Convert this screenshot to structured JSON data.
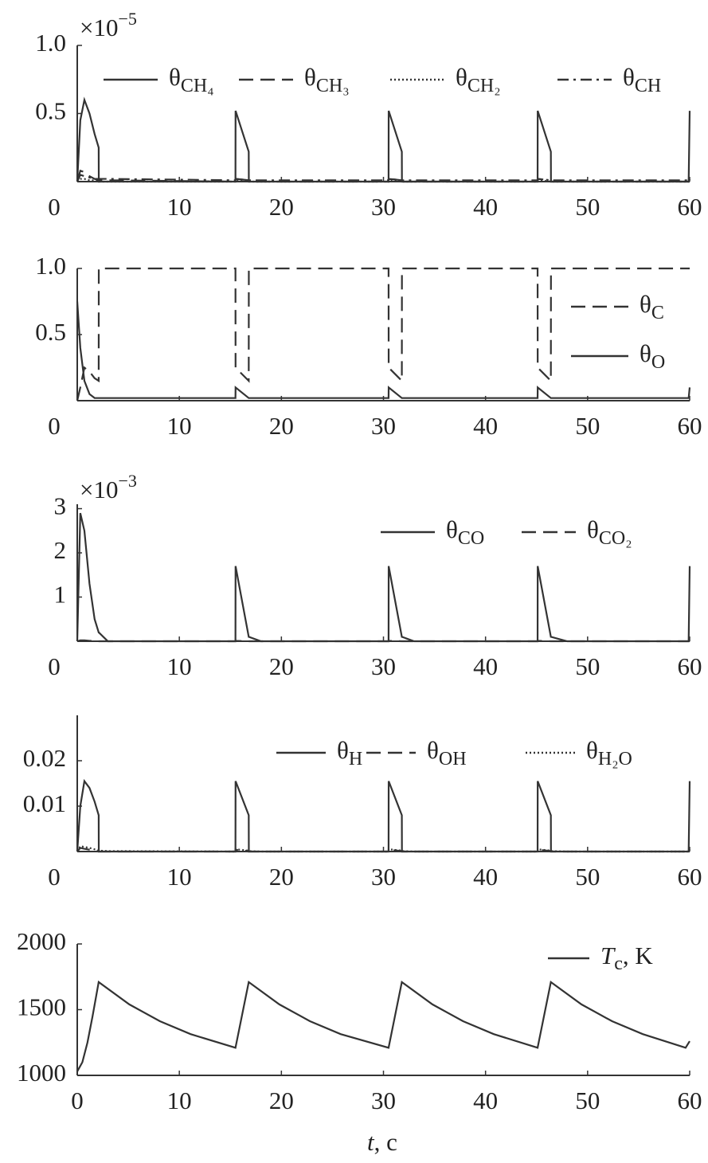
{
  "chart_data": [
    {
      "type": "line",
      "multiplier": "×10−5",
      "x": [
        0,
        0.3,
        0.7,
        1.2,
        1.7,
        2.1,
        2.11,
        3,
        15.5,
        15.51,
        16.8,
        16.81,
        18,
        30.5,
        30.51,
        31.8,
        31.81,
        33,
        45.1,
        45.11,
        46.4,
        46.41,
        48,
        59.9,
        60
      ],
      "series": [
        {
          "name": "θCH₄",
          "color": "#333333",
          "linestyle": "solid",
          "values": [
            0,
            0.45,
            0.6,
            0.5,
            0.35,
            0.25,
            0,
            0,
            0,
            0.52,
            0.22,
            0,
            0,
            0,
            0.52,
            0.22,
            0,
            0,
            0,
            0.52,
            0.22,
            0,
            0,
            0,
            0.52
          ]
        },
        {
          "name": "θCH₃",
          "color": "#333333",
          "linestyle": "dashed",
          "values": [
            0,
            0.08,
            0.07,
            0.04,
            0.02,
            0.01,
            0.01,
            0.01,
            0,
            0.02,
            0.01,
            0,
            0,
            0,
            0.02,
            0.01,
            0,
            0,
            0,
            0.02,
            0.01,
            0,
            0,
            0,
            0.02
          ]
        },
        {
          "name": "θCH₂",
          "color": "#333333",
          "linestyle": "dotted",
          "values": [
            0,
            0.02,
            0.02,
            0.01,
            0.01,
            0.01,
            0,
            0,
            0,
            0.01,
            0,
            0,
            0,
            0,
            0.01,
            0,
            0,
            0,
            0,
            0.01,
            0,
            0,
            0,
            0,
            0.01
          ]
        },
        {
          "name": "θCH",
          "color": "#333333",
          "linestyle": "dashdot",
          "values": [
            0,
            0.05,
            0.04,
            0.03,
            0.02,
            0.02,
            0.02,
            0.02,
            0.01,
            0.02,
            0.01,
            0.01,
            0.01,
            0.01,
            0.02,
            0.01,
            0.01,
            0.01,
            0.01,
            0.02,
            0.01,
            0.01,
            0.01,
            0.01,
            0.02
          ]
        }
      ],
      "xlim": [
        0,
        60
      ],
      "xticks": [
        0,
        10,
        20,
        30,
        40,
        50,
        60
      ],
      "ylim": [
        0,
        1
      ],
      "yticks": [
        0.5,
        {
          "value": 1,
          "label": "1.0"
        }
      ]
    },
    {
      "type": "line",
      "x": [
        0,
        0.3,
        0.7,
        1.2,
        1.7,
        2.1,
        2.11,
        3,
        15.5,
        15.51,
        16.8,
        16.81,
        18,
        30.5,
        30.51,
        31.8,
        31.81,
        33,
        45.1,
        45.11,
        46.4,
        46.41,
        48,
        59.9,
        60
      ],
      "series": [
        {
          "name": "θC",
          "color": "#333333",
          "linestyle": "dashed",
          "values": [
            0,
            0.1,
            0.25,
            0.22,
            0.17,
            0.15,
            1,
            1,
            1,
            0.25,
            0.15,
            1,
            1,
            1,
            0.25,
            0.15,
            1,
            1,
            1,
            0.25,
            0.15,
            1,
            1,
            1,
            1
          ]
        },
        {
          "name": "θO",
          "color": "#333333",
          "linestyle": "solid",
          "values": [
            0.75,
            0.4,
            0.15,
            0.05,
            0.02,
            0.02,
            0.02,
            0.02,
            0.02,
            0.1,
            0.02,
            0.02,
            0.02,
            0.02,
            0.1,
            0.02,
            0.02,
            0.02,
            0.02,
            0.1,
            0.02,
            0.02,
            0.02,
            0.02,
            0.1
          ]
        }
      ],
      "xlim": [
        0,
        60
      ],
      "xticks": [
        0,
        10,
        20,
        30,
        40,
        50,
        60
      ],
      "ylim": [
        0,
        1
      ],
      "yticks": [
        0.5,
        {
          "value": 1,
          "label": "1.0"
        }
      ]
    },
    {
      "type": "line",
      "multiplier": "×10−3",
      "x": [
        0,
        0.3,
        0.7,
        1.2,
        1.7,
        2.1,
        2.11,
        3,
        15.5,
        15.51,
        16.8,
        16.81,
        18,
        30.5,
        30.51,
        31.8,
        31.81,
        33,
        45.1,
        45.11,
        46.4,
        46.41,
        48,
        59.9,
        60
      ],
      "series": [
        {
          "name": "θCO",
          "color": "#333333",
          "linestyle": "solid",
          "values": [
            0,
            2.9,
            2.5,
            1.3,
            0.5,
            0.2,
            0.2,
            0,
            0,
            1.7,
            0.1,
            0.1,
            0,
            0,
            1.7,
            0.1,
            0.1,
            0,
            0,
            1.7,
            0.1,
            0.1,
            0,
            0,
            1.7
          ]
        },
        {
          "name": "θCO₂",
          "color": "#333333",
          "linestyle": "dashed",
          "values": [
            0,
            0.02,
            0.02,
            0.01,
            0.01,
            0,
            0,
            0,
            0,
            0.01,
            0,
            0,
            0,
            0,
            0.01,
            0,
            0,
            0,
            0,
            0.01,
            0,
            0,
            0,
            0,
            0.01
          ]
        }
      ],
      "xlim": [
        0,
        60
      ],
      "xticks": [
        0,
        10,
        20,
        30,
        40,
        50,
        60
      ],
      "ylim": [
        0,
        3.1
      ],
      "yticks": [
        1,
        2,
        3
      ]
    },
    {
      "type": "line",
      "x": [
        0,
        0.3,
        0.7,
        1.2,
        1.7,
        2.1,
        2.11,
        3,
        15.5,
        15.51,
        16.8,
        16.81,
        18,
        30.5,
        30.51,
        31.8,
        31.81,
        33,
        45.1,
        45.11,
        46.4,
        46.41,
        48,
        59.9,
        60
      ],
      "series": [
        {
          "name": "θH",
          "color": "#333333",
          "linestyle": "solid",
          "values": [
            0,
            0.01,
            0.0155,
            0.014,
            0.011,
            0.008,
            0,
            0,
            0,
            0.0155,
            0.008,
            0,
            0,
            0,
            0.0155,
            0.008,
            0,
            0,
            0,
            0.0155,
            0.008,
            0,
            0,
            0,
            0.0155
          ]
        },
        {
          "name": "θOH",
          "color": "#333333",
          "linestyle": "dashed",
          "values": [
            0,
            0.0008,
            0.0006,
            0.0004,
            0.0002,
            0.0001,
            0,
            0,
            0,
            0.0004,
            0.0001,
            0,
            0,
            0,
            0.0004,
            0.0001,
            0,
            0,
            0,
            0.0004,
            0.0001,
            0,
            0,
            0,
            0.0004
          ]
        },
        {
          "name": "θH₂O",
          "color": "#333333",
          "linestyle": "dotted",
          "values": [
            0,
            0.0012,
            0.001,
            0.0008,
            0.0005,
            0.0003,
            0.0002,
            0.0001,
            0,
            0.0005,
            0.0002,
            0.0001,
            0,
            0,
            0.0005,
            0.0002,
            0.0001,
            0,
            0,
            0.0005,
            0.0002,
            0.0001,
            0,
            0,
            0.0005
          ]
        }
      ],
      "xlim": [
        0,
        60
      ],
      "xticks": [
        0,
        10,
        20,
        30,
        40,
        50,
        60
      ],
      "ylim": [
        0,
        0.03
      ],
      "yticks": [
        0.01,
        0.02
      ]
    },
    {
      "type": "line",
      "x_label": "t, c",
      "x": [
        0,
        0.5,
        1,
        1.5,
        2.1,
        5.1,
        8.1,
        11.1,
        15.5,
        16.8,
        19.8,
        22.8,
        25.8,
        30.5,
        31.8,
        34.8,
        37.8,
        40.8,
        45.1,
        46.4,
        49.4,
        52.4,
        55.4,
        59.6,
        60
      ],
      "series": [
        {
          "name": "Tc, K",
          "color": "#333333",
          "linestyle": "solid",
          "values": [
            1030,
            1100,
            1250,
            1450,
            1710,
            1540,
            1412,
            1314,
            1210,
            1710,
            1540,
            1412,
            1314,
            1210,
            1710,
            1540,
            1412,
            1314,
            1210,
            1710,
            1540,
            1412,
            1314,
            1210,
            1260
          ]
        }
      ],
      "xlim": [
        0,
        60
      ],
      "xticks": [
        0,
        10,
        20,
        30,
        40,
        50,
        60
      ],
      "ylim": [
        1000,
        2000
      ],
      "yticks": [
        1000,
        1500,
        2000
      ]
    }
  ]
}
